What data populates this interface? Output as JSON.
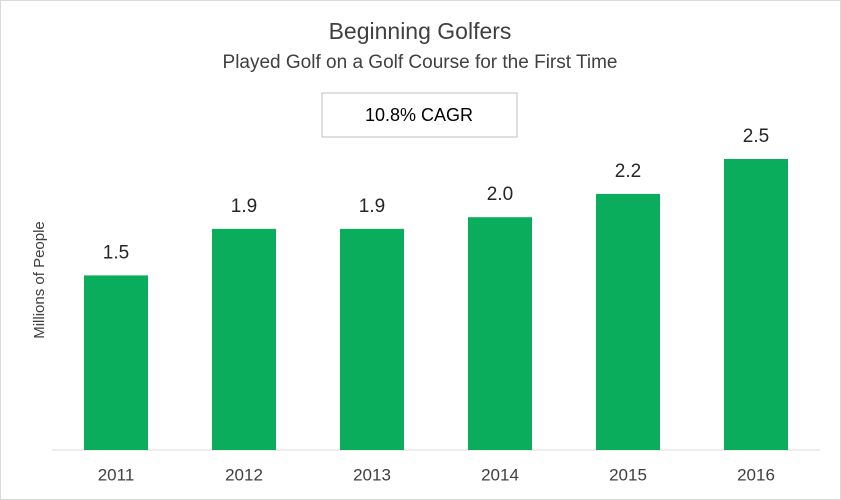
{
  "chart_data": {
    "type": "bar",
    "title": "Beginning Golfers",
    "subtitle": "Played Golf on a Golf Course for the First Time",
    "annotation": "10.8% CAGR",
    "y_label": "Millions of People",
    "categories": [
      "2011",
      "2012",
      "2013",
      "2014",
      "2015",
      "2016"
    ],
    "values": [
      1.5,
      1.9,
      1.9,
      2.0,
      2.2,
      2.5
    ],
    "value_labels": [
      "1.5",
      "1.9",
      "1.9",
      "2.0",
      "2.2",
      "2.5"
    ],
    "color": "#0aad5b"
  }
}
